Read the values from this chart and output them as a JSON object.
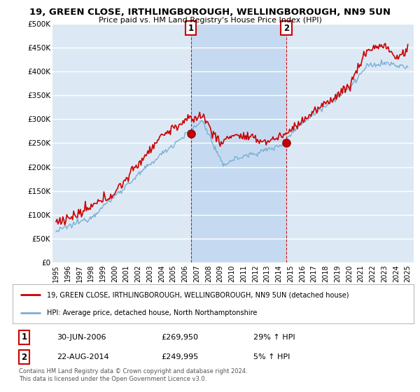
{
  "title": "19, GREEN CLOSE, IRTHLINGBOROUGH, WELLINGBOROUGH, NN9 5UN",
  "subtitle": "Price paid vs. HM Land Registry's House Price Index (HPI)",
  "legend_line1": "19, GREEN CLOSE, IRTHLINGBOROUGH, WELLINGBOROUGH, NN9 5UN (detached house)",
  "legend_line2": "HPI: Average price, detached house, North Northamptonshire",
  "annotation1_label": "1",
  "annotation1_date": "30-JUN-2006",
  "annotation1_price": "£269,950",
  "annotation1_hpi": "29% ↑ HPI",
  "annotation1_year": 2006.5,
  "annotation1_value": 269950,
  "annotation2_label": "2",
  "annotation2_date": "22-AUG-2014",
  "annotation2_price": "£249,995",
  "annotation2_hpi": "5% ↑ HPI",
  "annotation2_year": 2014.64,
  "annotation2_value": 249995,
  "footer": "Contains HM Land Registry data © Crown copyright and database right 2024.\nThis data is licensed under the Open Government Licence v3.0.",
  "fig_bg_color": "#ffffff",
  "plot_bg_color": "#dce9f5",
  "highlight_bg_color": "#c5daf0",
  "grid_color": "#ffffff",
  "red_line_color": "#cc0000",
  "blue_line_color": "#7bafd4",
  "ylim": [
    0,
    500000
  ],
  "yticks": [
    0,
    50000,
    100000,
    150000,
    200000,
    250000,
    300000,
    350000,
    400000,
    450000,
    500000
  ],
  "ytick_labels": [
    "£0",
    "£50K",
    "£100K",
    "£150K",
    "£200K",
    "£250K",
    "£300K",
    "£350K",
    "£400K",
    "£450K",
    "£500K"
  ],
  "xlim_start": 1994.7,
  "xlim_end": 2025.5
}
